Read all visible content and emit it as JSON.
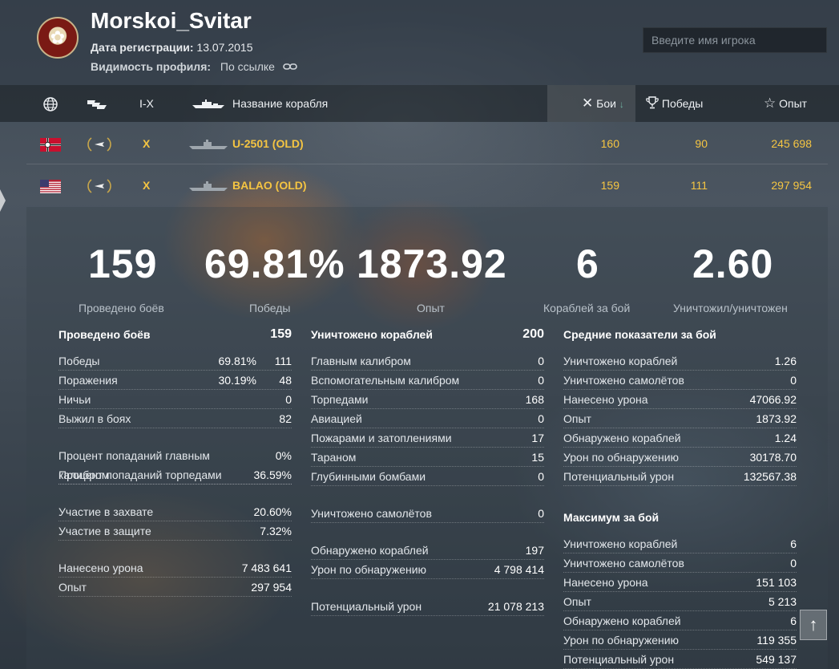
{
  "profile": {
    "name": "Morskoi_Svitar",
    "reg_label": "Дата регистрации:",
    "reg_date": "13.07.2015",
    "visibility_label": "Видимость профиля:",
    "visibility_value": "По ссылке",
    "avatar_icon": "emblem-icon"
  },
  "search": {
    "placeholder": "Введите имя игрока"
  },
  "table": {
    "header": {
      "tier": "I-X",
      "ship_name": "Название корабля",
      "battles": "Бои",
      "wins": "Победы",
      "exp": "Опыт"
    },
    "rows": [
      {
        "nation": "Germany",
        "tier": "X",
        "name": "U-2501 (OLD)",
        "battles": "160",
        "wins": "90",
        "exp": "245 698"
      },
      {
        "nation": "USA",
        "tier": "X",
        "name": "BALAO (OLD)",
        "battles": "159",
        "wins": "111",
        "exp": "297 954"
      }
    ]
  },
  "summary": [
    {
      "value": "159",
      "label": "Проведено боёв"
    },
    {
      "value": "69.81%",
      "label": "Победы"
    },
    {
      "value": "1873.92",
      "label": "Опыт"
    },
    {
      "value": "6",
      "label": "Кораблей за бой"
    },
    {
      "value": "2.60",
      "label": "Уничтожил/уничтожен"
    }
  ],
  "col1": {
    "title": "Проведено боёв",
    "title_value": "159",
    "wins": {
      "label": "Победы",
      "pct": "69.81%",
      "value": "111"
    },
    "losses": {
      "label": "Поражения",
      "pct": "30.19%",
      "value": "48"
    },
    "draws": {
      "label": "Ничьи",
      "value": "0"
    },
    "survived": {
      "label": "Выжил в боях",
      "value": "82"
    },
    "main_hit": {
      "label": "Процент попаданий главным калибром",
      "value": "0%"
    },
    "torp_hit": {
      "label": "Процент попаданий торпедами",
      "value": "36.59%"
    },
    "capture": {
      "label": "Участие в захвате",
      "value": "20.60%"
    },
    "defense": {
      "label": "Участие в защите",
      "value": "7.32%"
    },
    "damage": {
      "label": "Нанесено урона",
      "value": "7 483 641"
    },
    "exp": {
      "label": "Опыт",
      "value": "297 954"
    }
  },
  "col2": {
    "title": "Уничтожено кораблей",
    "title_value": "200",
    "main": {
      "label": "Главным калибром",
      "value": "0"
    },
    "secondary": {
      "label": "Вспомогательным калибром",
      "value": "0"
    },
    "torpedoes": {
      "label": "Торпедами",
      "value": "168"
    },
    "aviation": {
      "label": "Авиацией",
      "value": "0"
    },
    "fires": {
      "label": "Пожарами и затоплениями",
      "value": "17"
    },
    "ram": {
      "label": "Тараном",
      "value": "15"
    },
    "depth": {
      "label": "Глубинными бомбами",
      "value": "0"
    },
    "planes": {
      "label": "Уничтожено самолётов",
      "value": "0"
    },
    "spotted": {
      "label": "Обнаружено кораблей",
      "value": "197"
    },
    "spot_dmg": {
      "label": "Урон по обнаружению",
      "value": "4 798 414"
    },
    "potential": {
      "label": "Потенциальный урон",
      "value": "21 078 213"
    }
  },
  "col3": {
    "avg_title": "Средние показатели за бой",
    "avg": [
      {
        "label": "Уничтожено кораблей",
        "value": "1.26"
      },
      {
        "label": "Уничтожено самолётов",
        "value": "0"
      },
      {
        "label": "Нанесено урона",
        "value": "47066.92"
      },
      {
        "label": "Опыт",
        "value": "1873.92"
      },
      {
        "label": "Обнаружено кораблей",
        "value": "1.24"
      },
      {
        "label": "Урон по обнаружению",
        "value": "30178.70"
      },
      {
        "label": "Потенциальный урон",
        "value": "132567.38"
      }
    ],
    "max_title": "Максимум за бой",
    "max": [
      {
        "label": "Уничтожено кораблей",
        "value": "6"
      },
      {
        "label": "Уничтожено самолётов",
        "value": "0"
      },
      {
        "label": "Нанесено урона",
        "value": "151 103"
      },
      {
        "label": "Опыт",
        "value": "5 213"
      },
      {
        "label": "Обнаружено кораблей",
        "value": "6"
      },
      {
        "label": "Урон по обнаружению",
        "value": "119 355"
      },
      {
        "label": "Потенциальный урон",
        "value": "549 137"
      }
    ]
  },
  "colors": {
    "gold": "#f5c542",
    "accent_sort": "#6fb0a0"
  }
}
